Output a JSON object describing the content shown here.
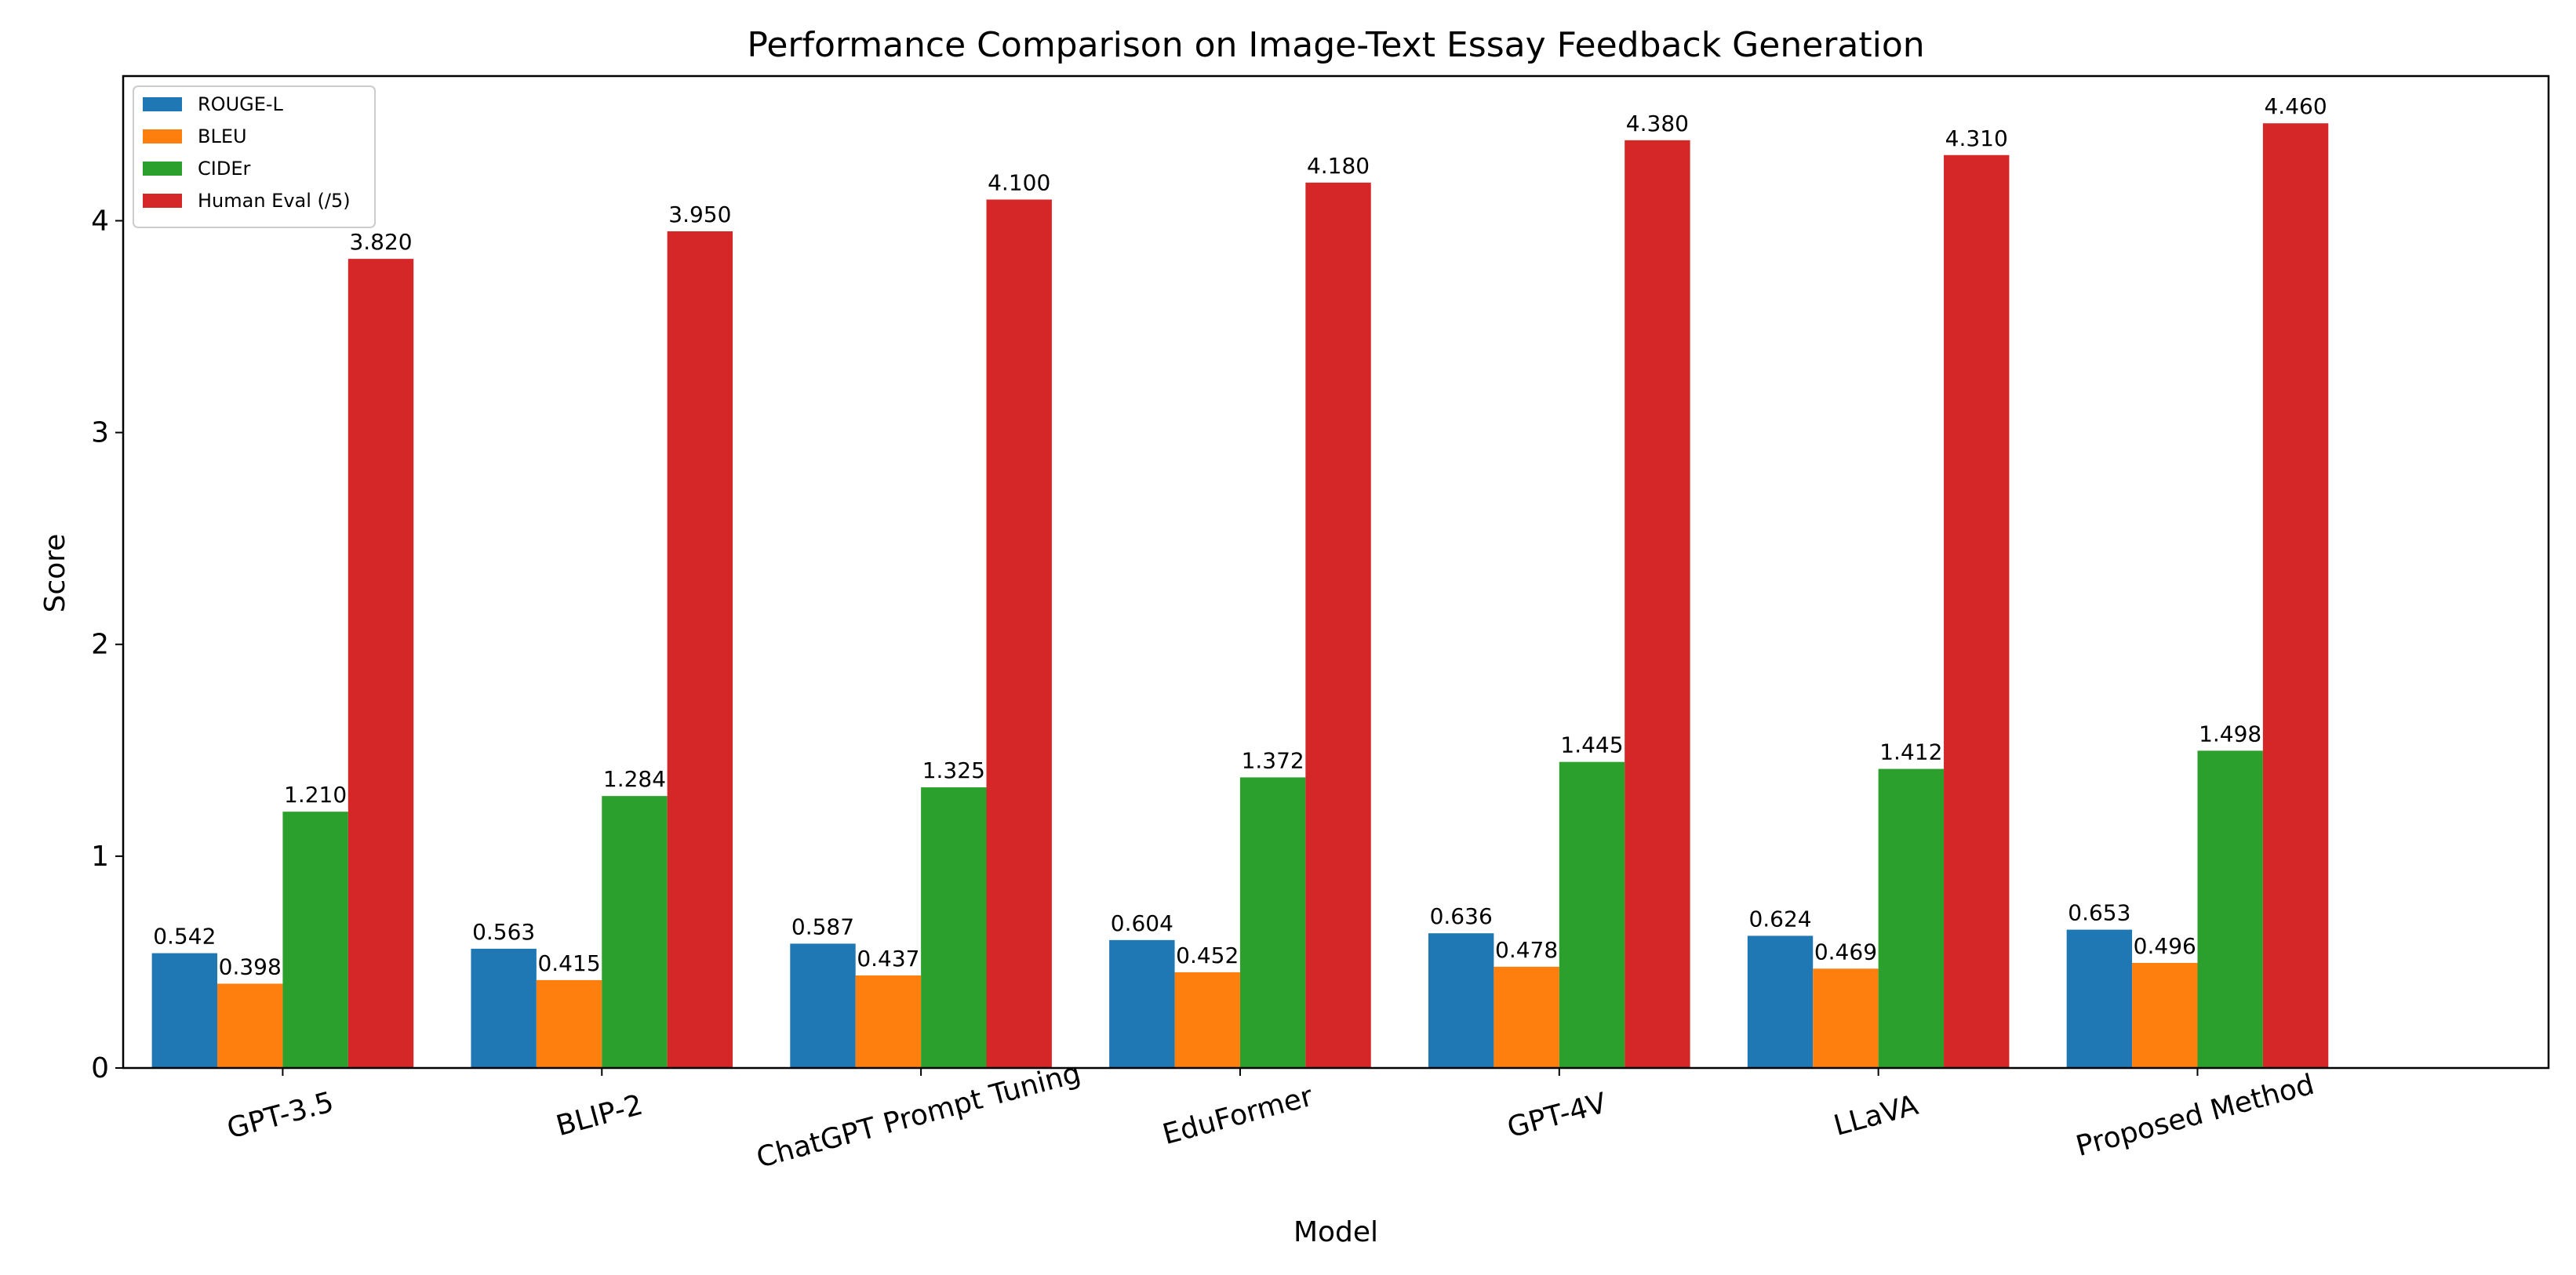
{
  "chart_data": {
    "type": "bar",
    "title": "Performance Comparison on Image-Text Essay Feedback Generation",
    "xlabel": "Model",
    "ylabel": "Score",
    "categories": [
      "GPT-3.5",
      "BLIP-2",
      "ChatGPT Prompt Tuning",
      "EduFormer",
      "GPT-4V",
      "LLaVA",
      "Proposed Method"
    ],
    "ylim": [
      0,
      4.683
    ],
    "yticks": [
      0,
      1,
      2,
      3,
      4
    ],
    "grid": false,
    "legend_position": "top-left",
    "x_tick_rotation_deg": -15,
    "series": [
      {
        "name": "ROUGE-L",
        "color": "#1f77b4",
        "values": [
          0.542,
          0.563,
          0.587,
          0.604,
          0.636,
          0.624,
          0.653
        ],
        "labels": [
          "0.542",
          "0.563",
          "0.587",
          "0.604",
          "0.636",
          "0.624",
          "0.653"
        ]
      },
      {
        "name": "BLEU",
        "color": "#ff7f0e",
        "values": [
          0.398,
          0.415,
          0.437,
          0.452,
          0.478,
          0.469,
          0.496
        ],
        "labels": [
          "0.398",
          "0.415",
          "0.437",
          "0.452",
          "0.478",
          "0.469",
          "0.496"
        ]
      },
      {
        "name": "CIDEr",
        "color": "#2ca02c",
        "values": [
          1.21,
          1.284,
          1.325,
          1.372,
          1.445,
          1.412,
          1.498
        ],
        "labels": [
          "1.210",
          "1.284",
          "1.325",
          "1.372",
          "1.445",
          "1.412",
          "1.498"
        ]
      },
      {
        "name": "Human Eval (/5)",
        "color": "#d62728",
        "values": [
          3.82,
          3.95,
          4.1,
          4.18,
          4.38,
          4.31,
          4.46
        ],
        "labels": [
          "3.820",
          "3.950",
          "4.100",
          "4.180",
          "4.380",
          "4.310",
          "4.460"
        ]
      }
    ]
  }
}
